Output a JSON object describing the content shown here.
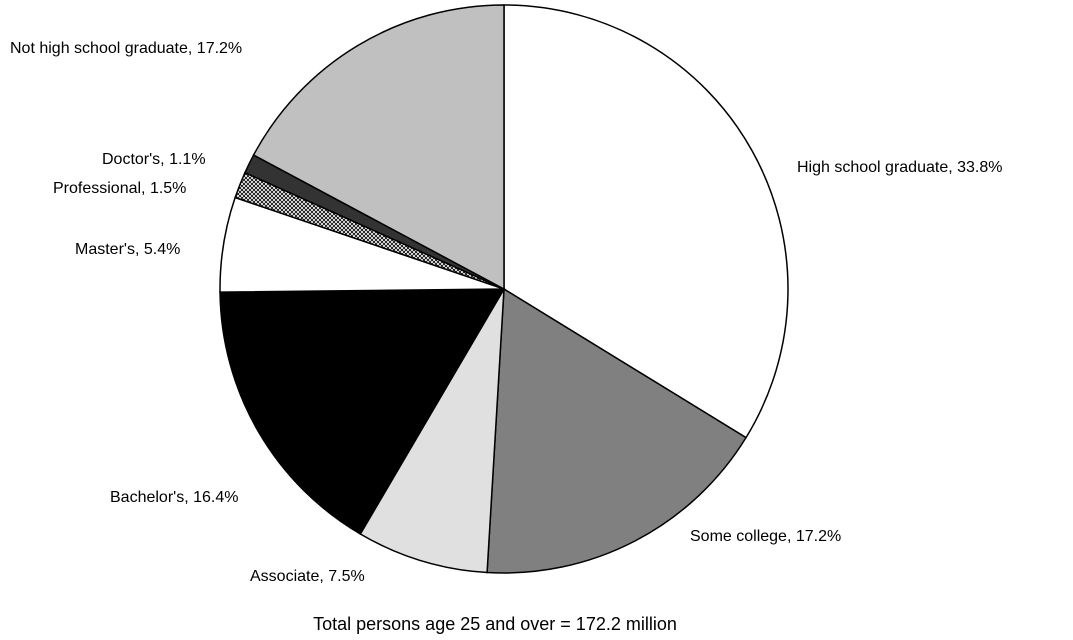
{
  "chart_data": {
    "type": "pie",
    "caption": "Total persons age 25 and over = 172.2 million",
    "slices": [
      {
        "label": "High school graduate",
        "value": 33.8,
        "display": "High school graduate,  33.8%",
        "fill": "#ffffff",
        "pattern": "none"
      },
      {
        "label": "Some college",
        "value": 17.2,
        "display": "Some college,  17.2%",
        "fill": "#808080",
        "pattern": "none"
      },
      {
        "label": "Associate",
        "value": 7.5,
        "display": "Associate,  7.5%",
        "fill": "#e0e0e0",
        "pattern": "none"
      },
      {
        "label": "Bachelor's",
        "value": 16.4,
        "display": "Bachelor's,  16.4%",
        "fill": "#000000",
        "pattern": "none"
      },
      {
        "label": "Master's",
        "value": 5.4,
        "display": "Master's,  5.4%",
        "fill": "#ffffff",
        "pattern": "none"
      },
      {
        "label": "Professional",
        "value": 1.5,
        "display": "Professional,  1.5%",
        "fill": "#ffffff",
        "pattern": "crosshatch"
      },
      {
        "label": "Doctor's",
        "value": 1.1,
        "display": "Doctor's,  1.1%",
        "fill": "#333333",
        "pattern": "none"
      },
      {
        "label": "Not high school graduate",
        "value": 17.2,
        "display": "Not high school graduate,  17.2%",
        "fill": "#c0c0c0",
        "pattern": "none"
      }
    ]
  }
}
